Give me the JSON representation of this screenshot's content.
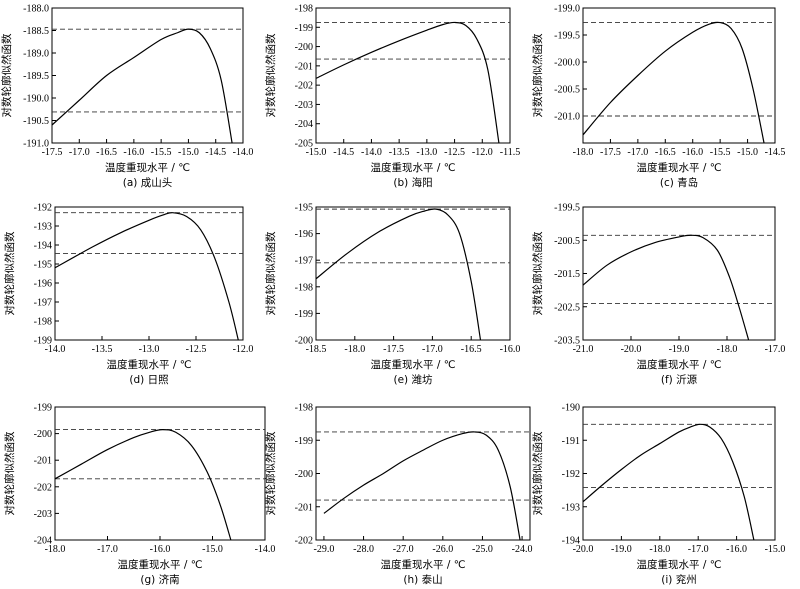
{
  "chart_data": [
    {
      "type": "line",
      "caption": "(a)  成山头",
      "xlabel": "温度重现水平 / ℃",
      "ylabel": "对数轮廓似然函数",
      "xlim": [
        -17.5,
        -14.0
      ],
      "ylim": [
        -191.0,
        -188.0
      ],
      "xticks": [
        -17.5,
        -17.0,
        -16.5,
        -16.0,
        -15.5,
        -15.0,
        -14.5,
        -14.0
      ],
      "xtick_labels": [
        "-17.5",
        "-17.0",
        "-16.5",
        "-16.0",
        "-15.5",
        "-15.0",
        "-14.5",
        "-14.0"
      ],
      "yticks": [
        -188.0,
        -188.5,
        -189.0,
        -189.5,
        -190.0,
        -190.5,
        -191.0
      ],
      "ytick_labels": [
        "-188.0",
        "-188.5",
        "-189.0",
        "-189.5",
        "-190.0",
        "-190.5",
        "-191.0"
      ],
      "dashed_y": [
        -188.47,
        -190.31
      ],
      "series": [
        {
          "x": [
            -17.5,
            -17.0,
            -16.5,
            -16.0,
            -15.5,
            -15.2,
            -15.0,
            -14.8,
            -14.6,
            -14.4,
            -14.2
          ],
          "y": [
            -190.6,
            -190.05,
            -189.5,
            -189.1,
            -188.7,
            -188.55,
            -188.47,
            -188.55,
            -188.9,
            -189.6,
            -191.0
          ]
        }
      ]
    },
    {
      "type": "line",
      "caption": "(b)  海阳",
      "xlabel": "温度重现水平 / ℃",
      "ylabel": "对数轮廓似然函数",
      "xlim": [
        -15.0,
        -11.5
      ],
      "ylim": [
        -205,
        -198
      ],
      "xticks": [
        -15.0,
        -14.5,
        -14.0,
        -13.5,
        -13.0,
        -12.5,
        -12.0,
        -11.5
      ],
      "xtick_labels": [
        "-15.0",
        "-14.5",
        "-14.0",
        "-13.5",
        "-13.0",
        "-12.5",
        "-12.0",
        "-11.5"
      ],
      "yticks": [
        -198,
        -199,
        -200,
        -201,
        -202,
        -203,
        -204,
        -205
      ],
      "ytick_labels": [
        "-198",
        "-199",
        "-200",
        "-201",
        "-202",
        "-203",
        "-204",
        "-205"
      ],
      "dashed_y": [
        -198.75,
        -200.65
      ],
      "series": [
        {
          "x": [
            -15.0,
            -14.5,
            -14.0,
            -13.5,
            -13.0,
            -12.7,
            -12.5,
            -12.3,
            -12.1,
            -11.9,
            -11.7
          ],
          "y": [
            -201.65,
            -200.95,
            -200.3,
            -199.7,
            -199.15,
            -198.85,
            -198.75,
            -198.9,
            -199.6,
            -201.2,
            -205.0
          ]
        }
      ]
    },
    {
      "type": "line",
      "caption": "(c)  青岛",
      "xlabel": "温度重现水平 / ℃",
      "ylabel": "对数轮廓似然函数",
      "xlim": [
        -18.0,
        -14.5
      ],
      "ylim": [
        -201.5,
        -199.0
      ],
      "xticks": [
        -18.0,
        -17.5,
        -17.0,
        -16.5,
        -16.0,
        -15.5,
        -15.0,
        -14.5
      ],
      "xtick_labels": [
        "-18.0",
        "-17.5",
        "-17.0",
        "-16.5",
        "-16.0",
        "-15.5",
        "-15.0",
        "-14.5"
      ],
      "yticks": [
        -199.0,
        -199.5,
        -200.0,
        -200.5,
        -201.0
      ],
      "ytick_labels": [
        "-199.0",
        "-199.5",
        "-200.0",
        "-200.5",
        "-201.0"
      ],
      "dashed_y": [
        -199.27,
        -201.0
      ],
      "series": [
        {
          "x": [
            -18.0,
            -17.5,
            -17.0,
            -16.5,
            -16.0,
            -15.7,
            -15.5,
            -15.3,
            -15.1,
            -14.9,
            -14.7
          ],
          "y": [
            -201.35,
            -200.75,
            -200.25,
            -199.8,
            -199.45,
            -199.3,
            -199.27,
            -199.38,
            -199.75,
            -200.5,
            -201.5
          ]
        }
      ]
    },
    {
      "type": "line",
      "caption": "(d)  日照",
      "xlabel": "温度重现水平 / ℃",
      "ylabel": "对数轮廓似然函数",
      "xlim": [
        -14.0,
        -12.0
      ],
      "ylim": [
        -199,
        -192
      ],
      "xticks": [
        -14.0,
        -13.5,
        -13.0,
        -12.5,
        -12.0
      ],
      "xtick_labels": [
        "-14.0",
        "-13.5",
        "-13.0",
        "-12.5",
        "-12.0"
      ],
      "yticks": [
        -192,
        -193,
        -194,
        -195,
        -196,
        -197,
        -198,
        -199
      ],
      "ytick_labels": [
        "-192",
        "-193",
        "-194",
        "-195",
        "-196",
        "-197",
        "-198",
        "-199"
      ],
      "dashed_y": [
        -192.3,
        -194.45
      ],
      "series": [
        {
          "x": [
            -14.0,
            -13.6,
            -13.3,
            -13.0,
            -12.85,
            -12.75,
            -12.6,
            -12.45,
            -12.3,
            -12.15,
            -12.05
          ],
          "y": [
            -195.2,
            -194.1,
            -193.35,
            -192.7,
            -192.42,
            -192.3,
            -192.5,
            -193.2,
            -194.7,
            -197.0,
            -199.0
          ]
        }
      ]
    },
    {
      "type": "line",
      "caption": "(e)  潍坊",
      "xlabel": "温度重现水平 / ℃",
      "ylabel": "对数轮廓似然函数",
      "xlim": [
        -18.5,
        -16.0
      ],
      "ylim": [
        -200,
        -195
      ],
      "xticks": [
        -18.5,
        -18.0,
        -17.5,
        -17.0,
        -16.5,
        -16.0
      ],
      "xtick_labels": [
        "-18.5",
        "-18.0",
        "-17.5",
        "-17.0",
        "-16.5",
        "-16.0"
      ],
      "yticks": [
        -195,
        -196,
        -197,
        -198,
        -199,
        -200
      ],
      "ytick_labels": [
        "-195",
        "-196",
        "-197",
        "-198",
        "-199",
        "-200"
      ],
      "dashed_y": [
        -195.08,
        -197.1
      ],
      "series": [
        {
          "x": [
            -18.5,
            -18.1,
            -17.7,
            -17.3,
            -17.1,
            -16.95,
            -16.8,
            -16.65,
            -16.5,
            -16.38
          ],
          "y": [
            -197.7,
            -196.75,
            -195.95,
            -195.35,
            -195.15,
            -195.08,
            -195.3,
            -196.0,
            -197.8,
            -200.0
          ]
        }
      ]
    },
    {
      "type": "line",
      "caption": "(f)  沂源",
      "xlabel": "温度重现水平 / ℃",
      "ylabel": "对数轮廓似然函数",
      "xlim": [
        -21.0,
        -17.0
      ],
      "ylim": [
        -203.5,
        -199.5
      ],
      "xticks": [
        -21.0,
        -20.0,
        -19.0,
        -18.0,
        -17.0
      ],
      "xtick_labels": [
        "-21.0",
        "-20.0",
        "-19.0",
        "-18.0",
        "-17.0"
      ],
      "yticks": [
        -199.5,
        -200.5,
        -201.5,
        -202.5,
        -203.5
      ],
      "ytick_labels": [
        "-199.5",
        "-200.5",
        "-201.5",
        "-202.5",
        "-203.5"
      ],
      "dashed_y": [
        -200.35,
        -202.4
      ],
      "series": [
        {
          "x": [
            -21.0,
            -20.5,
            -20.0,
            -19.5,
            -19.0,
            -18.75,
            -18.5,
            -18.2,
            -17.95,
            -17.75,
            -17.55
          ],
          "y": [
            -201.85,
            -201.25,
            -200.85,
            -200.57,
            -200.4,
            -200.35,
            -200.42,
            -200.8,
            -201.6,
            -202.5,
            -203.5
          ]
        }
      ]
    },
    {
      "type": "line",
      "caption": "(g)  济南",
      "xlabel": "温度重现水平 / ℃",
      "ylabel": "对数轮廓似然函数",
      "xlim": [
        -18.0,
        -14.0
      ],
      "ylim": [
        -204,
        -199
      ],
      "xticks": [
        -18.0,
        -17.0,
        -16.0,
        -15.0,
        -14.0
      ],
      "xtick_labels": [
        "-18.0",
        "-17.0",
        "-16.0",
        "-15.0",
        "-14.0"
      ],
      "yticks": [
        -199,
        -200,
        -201,
        -202,
        -203,
        -204
      ],
      "ytick_labels": [
        "-199",
        "-200",
        "-201",
        "-202",
        "-203",
        "-204"
      ],
      "dashed_y": [
        -199.85,
        -201.7
      ],
      "series": [
        {
          "x": [
            -18.0,
            -17.5,
            -17.0,
            -16.5,
            -16.2,
            -15.95,
            -15.7,
            -15.4,
            -15.1,
            -14.85,
            -14.65
          ],
          "y": [
            -201.7,
            -201.15,
            -200.6,
            -200.15,
            -199.95,
            -199.85,
            -199.95,
            -200.45,
            -201.45,
            -202.7,
            -204.0
          ]
        }
      ]
    },
    {
      "type": "line",
      "caption": "(h)  泰山",
      "xlabel": "温度重现水平 / ℃",
      "ylabel": "对数轮廓似然函数",
      "xlim": [
        -29.2,
        -23.8
      ],
      "ylim": [
        -202,
        -198
      ],
      "xticks": [
        -29.0,
        -28.0,
        -27.0,
        -26.0,
        -25.0,
        -24.0
      ],
      "xtick_labels": [
        "-29.0",
        "-28.0",
        "-27.0",
        "-26.0",
        "-25.0",
        "-24.0"
      ],
      "yticks": [
        -198,
        -199,
        -200,
        -201,
        -202
      ],
      "ytick_labels": [
        "-198",
        "-199",
        "-200",
        "-201",
        "-202"
      ],
      "dashed_y": [
        -198.75,
        -200.8
      ],
      "series": [
        {
          "x": [
            -29.0,
            -28.5,
            -28.0,
            -27.5,
            -27.0,
            -26.5,
            -26.0,
            -25.5,
            -25.2,
            -24.9,
            -24.6,
            -24.3,
            -24.05
          ],
          "y": [
            -201.2,
            -200.75,
            -200.35,
            -200.0,
            -199.62,
            -199.3,
            -199.0,
            -198.8,
            -198.75,
            -198.85,
            -199.3,
            -200.4,
            -202.0
          ]
        }
      ]
    },
    {
      "type": "line",
      "caption": "(i)  兖州",
      "xlabel": "温度重现水平 / ℃",
      "ylabel": "对数轮廓似然函数",
      "xlim": [
        -20.0,
        -15.0
      ],
      "ylim": [
        -194,
        -190
      ],
      "xticks": [
        -20.0,
        -19.0,
        -18.0,
        -17.0,
        -16.0,
        -15.0
      ],
      "xtick_labels": [
        "-20.0",
        "-19.0",
        "-18.0",
        "-17.0",
        "-16.0",
        "-15.0"
      ],
      "yticks": [
        -190,
        -191,
        -192,
        -193,
        -194
      ],
      "ytick_labels": [
        "-190",
        "-191",
        "-192",
        "-193",
        "-194"
      ],
      "dashed_y": [
        -190.52,
        -192.42
      ],
      "series": [
        {
          "x": [
            -20.0,
            -19.5,
            -19.0,
            -18.5,
            -18.0,
            -17.5,
            -17.2,
            -16.95,
            -16.7,
            -16.4,
            -16.1,
            -15.8,
            -15.55
          ],
          "y": [
            -192.85,
            -192.35,
            -191.88,
            -191.45,
            -191.1,
            -190.75,
            -190.6,
            -190.52,
            -190.6,
            -190.95,
            -191.65,
            -192.7,
            -194.0
          ]
        }
      ]
    }
  ]
}
